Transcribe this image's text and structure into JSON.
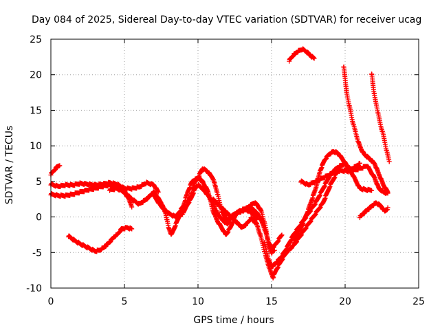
{
  "chart_data": {
    "type": "scatter",
    "title": "Day 084 of 2025, Sidereal Day-to-day VTEC variation (SDTVAR) for receiver ucag",
    "xlabel": "GPS time / hours",
    "ylabel": "SDTVAR / TECUs",
    "xlim": [
      0,
      25
    ],
    "ylim": [
      -10,
      25
    ],
    "xticks": [
      "0",
      "5",
      "10",
      "15",
      "20",
      "25"
    ],
    "yticks": [
      "-10",
      "-5",
      "0",
      "5",
      "10",
      "15",
      "20",
      "25"
    ],
    "grid": true,
    "marker": "+",
    "color": "#ff0000",
    "series": [
      {
        "name": "s1",
        "points": [
          [
            0.0,
            6.0
          ],
          [
            0.2,
            6.5
          ],
          [
            0.4,
            7.0
          ],
          [
            0.6,
            7.3
          ]
        ]
      },
      {
        "name": "s2",
        "points": [
          [
            0.0,
            4.6
          ],
          [
            0.5,
            4.3
          ],
          [
            1.0,
            4.5
          ],
          [
            1.5,
            4.5
          ],
          [
            2.0,
            4.7
          ],
          [
            2.5,
            4.6
          ],
          [
            3.0,
            4.5
          ],
          [
            3.5,
            4.6
          ],
          [
            4.0,
            4.8
          ],
          [
            4.5,
            4.6
          ],
          [
            5.0,
            4.0
          ],
          [
            5.5,
            4.0
          ],
          [
            6.0,
            4.2
          ],
          [
            6.5,
            4.8
          ],
          [
            7.0,
            4.5
          ],
          [
            7.3,
            3.5
          ]
        ]
      },
      {
        "name": "s3",
        "points": [
          [
            0.0,
            3.2
          ],
          [
            0.5,
            3.0
          ],
          [
            1.0,
            3.0
          ],
          [
            1.5,
            3.2
          ],
          [
            2.0,
            3.5
          ],
          [
            2.5,
            3.8
          ],
          [
            3.0,
            4.0
          ],
          [
            3.5,
            4.3
          ],
          [
            4.0,
            4.5
          ],
          [
            4.5,
            4.2
          ],
          [
            5.0,
            3.5
          ],
          [
            5.3,
            2.5
          ],
          [
            5.5,
            1.5
          ]
        ]
      },
      {
        "name": "s4",
        "points": [
          [
            1.2,
            -2.7
          ],
          [
            1.6,
            -3.3
          ],
          [
            2.0,
            -3.8
          ],
          [
            2.5,
            -4.3
          ],
          [
            3.0,
            -4.8
          ],
          [
            3.3,
            -4.7
          ],
          [
            3.6,
            -4.3
          ],
          [
            4.0,
            -3.5
          ],
          [
            4.3,
            -2.8
          ],
          [
            4.5,
            -2.5
          ],
          [
            4.8,
            -1.7
          ],
          [
            5.2,
            -1.5
          ],
          [
            5.5,
            -1.7
          ]
        ]
      },
      {
        "name": "s5",
        "points": [
          [
            4.0,
            3.8
          ],
          [
            4.5,
            4.0
          ],
          [
            5.0,
            3.5
          ],
          [
            5.5,
            2.5
          ],
          [
            6.0,
            1.8
          ],
          [
            6.5,
            2.5
          ],
          [
            7.0,
            3.5
          ],
          [
            7.5,
            2.0
          ],
          [
            7.8,
            0.5
          ],
          [
            8.0,
            -1.5
          ],
          [
            8.2,
            -2.5
          ],
          [
            8.5,
            -1.0
          ],
          [
            8.8,
            0.5
          ],
          [
            9.2,
            1.5
          ],
          [
            9.5,
            2.5
          ],
          [
            9.8,
            4.0
          ],
          [
            10.0,
            4.5
          ],
          [
            10.3,
            4.0
          ],
          [
            10.7,
            3.0
          ],
          [
            11.0,
            2.0
          ],
          [
            11.3,
            0.5
          ],
          [
            11.7,
            -0.5
          ],
          [
            12.0,
            -1.0
          ],
          [
            12.3,
            0.0
          ],
          [
            12.8,
            0.8
          ],
          [
            13.3,
            1.0
          ],
          [
            13.7,
            0.5
          ],
          [
            14.0,
            -0.3
          ]
        ]
      },
      {
        "name": "s6",
        "points": [
          [
            7.0,
            3.0
          ],
          [
            7.5,
            1.5
          ],
          [
            8.0,
            0.5
          ],
          [
            8.5,
            0.0
          ],
          [
            9.0,
            0.5
          ],
          [
            9.5,
            3.0
          ],
          [
            9.8,
            5.0
          ],
          [
            10.0,
            5.5
          ],
          [
            10.3,
            5.0
          ],
          [
            10.7,
            3.5
          ],
          [
            11.0,
            1.0
          ],
          [
            11.3,
            -0.5
          ],
          [
            11.6,
            -1.5
          ],
          [
            11.9,
            -2.5
          ],
          [
            12.2,
            -1.5
          ],
          [
            12.6,
            0.5
          ],
          [
            13.0,
            1.0
          ],
          [
            13.4,
            1.3
          ],
          [
            13.8,
            1.0
          ],
          [
            14.2,
            0.0
          ],
          [
            14.5,
            -1.5
          ],
          [
            14.8,
            -3.5
          ],
          [
            15.0,
            -4.5
          ],
          [
            15.3,
            -3.8
          ],
          [
            15.7,
            -2.5
          ]
        ]
      },
      {
        "name": "s7",
        "points": [
          [
            8.5,
            0.0
          ],
          [
            9.0,
            1.5
          ],
          [
            9.3,
            3.5
          ],
          [
            9.6,
            5.0
          ],
          [
            10.0,
            5.5
          ],
          [
            10.3,
            6.8
          ],
          [
            10.6,
            6.5
          ],
          [
            11.0,
            5.5
          ],
          [
            11.3,
            3.5
          ],
          [
            11.6,
            0.8
          ],
          [
            12.0,
            -0.5
          ],
          [
            12.5,
            0.5
          ],
          [
            13.0,
            0.8
          ],
          [
            13.5,
            1.5
          ],
          [
            13.8,
            2.0
          ],
          [
            14.0,
            1.8
          ],
          [
            14.3,
            0.8
          ],
          [
            14.6,
            -1.5
          ],
          [
            14.8,
            -4.0
          ],
          [
            15.0,
            -5.0
          ],
          [
            15.2,
            -4.7
          ]
        ]
      },
      {
        "name": "s8",
        "points": [
          [
            11.0,
            2.5
          ],
          [
            11.5,
            1.5
          ],
          [
            12.0,
            0.5
          ],
          [
            12.5,
            -0.5
          ],
          [
            13.0,
            -1.5
          ],
          [
            13.3,
            -1.0
          ],
          [
            13.6,
            -0.2
          ],
          [
            14.0,
            -1.0
          ],
          [
            14.3,
            -3.0
          ],
          [
            14.6,
            -5.5
          ],
          [
            14.9,
            -7.5
          ],
          [
            15.1,
            -8.5
          ],
          [
            15.3,
            -7.5
          ],
          [
            15.7,
            -6.0
          ],
          [
            16.0,
            -5.0
          ],
          [
            16.5,
            -4.0
          ],
          [
            17.0,
            -2.5
          ],
          [
            17.5,
            -1.0
          ],
          [
            18.0,
            0.5
          ],
          [
            18.5,
            2.0
          ],
          [
            19.0,
            4.5
          ],
          [
            19.5,
            6.5
          ],
          [
            20.0,
            6.5
          ],
          [
            20.5,
            6.8
          ],
          [
            21.0,
            7.5
          ]
        ]
      },
      {
        "name": "s9",
        "points": [
          [
            14.5,
            -3.5
          ],
          [
            14.8,
            -6.0
          ],
          [
            15.0,
            -7.0
          ],
          [
            15.3,
            -6.5
          ],
          [
            15.7,
            -5.5
          ],
          [
            16.0,
            -4.5
          ],
          [
            16.5,
            -2.5
          ],
          [
            17.0,
            -1.0
          ],
          [
            17.5,
            0.5
          ],
          [
            18.0,
            2.0
          ],
          [
            18.5,
            4.0
          ],
          [
            19.0,
            6.0
          ],
          [
            19.5,
            7.0
          ],
          [
            20.0,
            7.5
          ],
          [
            20.5,
            6.0
          ],
          [
            21.0,
            4.0
          ],
          [
            21.5,
            3.8
          ],
          [
            21.8,
            3.8
          ]
        ]
      },
      {
        "name": "s10",
        "points": [
          [
            16.5,
            -3.5
          ],
          [
            17.0,
            -1.5
          ],
          [
            17.5,
            1.0
          ],
          [
            18.0,
            4.0
          ],
          [
            18.3,
            6.5
          ],
          [
            18.6,
            8.0
          ],
          [
            18.9,
            8.8
          ],
          [
            19.2,
            9.2
          ],
          [
            19.5,
            9.0
          ],
          [
            19.8,
            8.2
          ],
          [
            20.2,
            7.0
          ],
          [
            20.5,
            6.5
          ],
          [
            21.0,
            6.8
          ],
          [
            21.5,
            7.2
          ],
          [
            22.0,
            5.5
          ],
          [
            22.3,
            4.0
          ],
          [
            22.6,
            3.5
          ],
          [
            22.9,
            3.3
          ]
        ]
      },
      {
        "name": "s11",
        "points": [
          [
            17.0,
            5.0
          ],
          [
            17.5,
            4.5
          ],
          [
            18.0,
            5.0
          ],
          [
            18.5,
            5.5
          ],
          [
            19.0,
            6.0
          ],
          [
            19.5,
            6.5
          ],
          [
            20.0,
            6.5
          ],
          [
            20.3,
            6.4
          ]
        ]
      },
      {
        "name": "s12",
        "points": [
          [
            16.2,
            22.0
          ],
          [
            16.5,
            22.8
          ],
          [
            16.8,
            23.3
          ],
          [
            17.1,
            23.6
          ],
          [
            17.4,
            23.2
          ],
          [
            17.7,
            22.6
          ],
          [
            17.9,
            22.3
          ]
        ]
      },
      {
        "name": "s13",
        "points": [
          [
            19.9,
            21.2
          ],
          [
            20.0,
            19.5
          ],
          [
            20.1,
            17.5
          ],
          [
            20.3,
            15.5
          ],
          [
            20.5,
            13.5
          ],
          [
            20.7,
            12.0
          ],
          [
            20.9,
            10.5
          ],
          [
            21.1,
            9.5
          ],
          [
            21.3,
            8.8
          ],
          [
            21.6,
            8.3
          ],
          [
            22.0,
            7.5
          ],
          [
            22.3,
            6.0
          ],
          [
            22.6,
            4.5
          ],
          [
            22.9,
            3.5
          ]
        ]
      },
      {
        "name": "s14",
        "points": [
          [
            21.8,
            20.2
          ],
          [
            21.9,
            18.5
          ],
          [
            22.0,
            17.0
          ],
          [
            22.2,
            15.0
          ],
          [
            22.4,
            13.0
          ],
          [
            22.6,
            11.5
          ],
          [
            22.8,
            9.5
          ],
          [
            23.0,
            7.8
          ]
        ]
      },
      {
        "name": "s15",
        "points": [
          [
            21.0,
            0.0
          ],
          [
            21.4,
            0.8
          ],
          [
            21.8,
            1.5
          ],
          [
            22.1,
            2.0
          ],
          [
            22.4,
            1.6
          ],
          [
            22.7,
            0.8
          ],
          [
            22.9,
            1.2
          ]
        ]
      }
    ]
  }
}
